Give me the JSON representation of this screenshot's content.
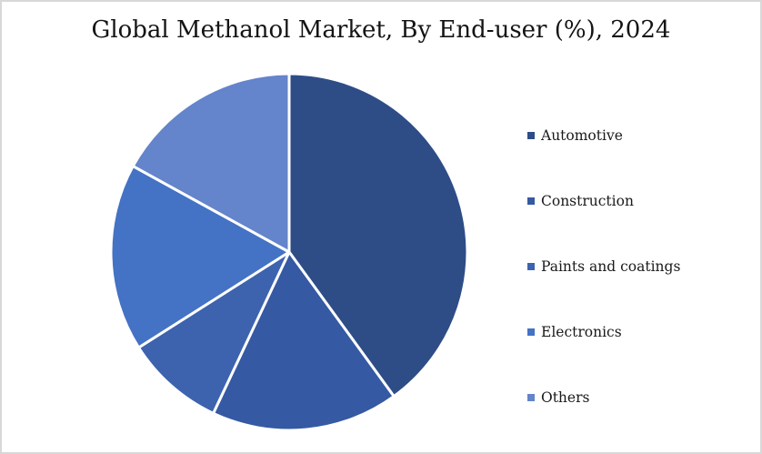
{
  "page": {
    "background_color": "#FFFFFF",
    "border_color": "#D8D8D8"
  },
  "title": "Global Methanol Market, By End-user (%), 2024",
  "chart_data": {
    "type": "pie",
    "title": "Global Methanol Market, By End-user (%), 2024",
    "unit": "%",
    "labels": [
      "Automotive",
      "Construction",
      "Paints and coatings",
      "Electronics",
      "Others"
    ],
    "values": [
      40,
      17,
      9,
      17,
      17
    ],
    "colors": [
      "#2E4D87",
      "#3559A3",
      "#3D63AE",
      "#4472C4",
      "#6484CB"
    ],
    "start_angle_deg": 0,
    "clockwise": true,
    "separator_color": "#FFFFFF",
    "separator_width": 3,
    "legend_position": "right",
    "data_labels": false
  }
}
